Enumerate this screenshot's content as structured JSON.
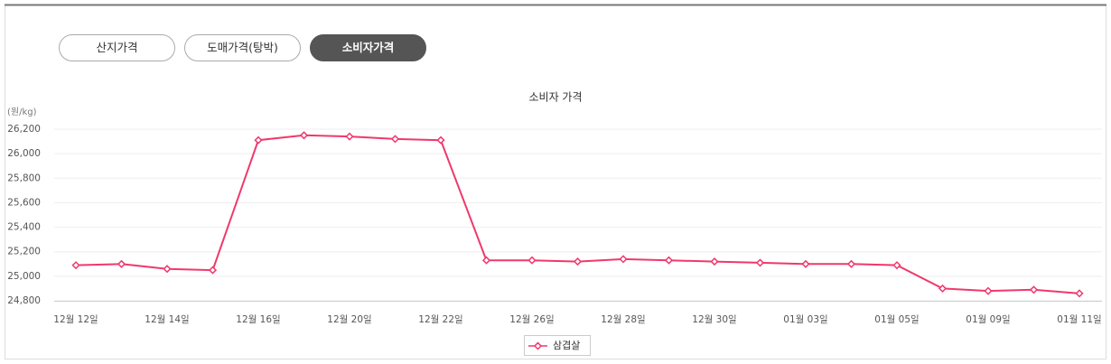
{
  "tabs": [
    "산지가격",
    "도매가격(탕박)",
    "소비자가격"
  ],
  "active_tab": 2,
  "chart_data": {
    "type": "line",
    "title": "소비자 가격",
    "y_label": "(원/kg)",
    "categories": [
      "12월 12일",
      null,
      "12월 14일",
      null,
      "12월 16일",
      null,
      "12월 20일",
      null,
      "12월 22일",
      null,
      "12월 26일",
      null,
      "12월 28일",
      null,
      "12월 30일",
      null,
      "01월 03일",
      null,
      "01월 05일",
      null,
      "01월 09일",
      null,
      "01월 11일"
    ],
    "series": [
      {
        "name": "삼겹살",
        "color": "#f0386b",
        "values": [
          25090,
          25100,
          25060,
          25050,
          26110,
          26150,
          26140,
          26120,
          26110,
          25130,
          25130,
          25120,
          25140,
          25130,
          25120,
          25110,
          25100,
          25100,
          25090,
          24900,
          24880,
          24890,
          24860
        ]
      }
    ],
    "ylim": [
      24800,
      26200
    ],
    "yticks": [
      {
        "value": 24800,
        "label": "24,800"
      },
      {
        "value": 25000,
        "label": "25,000"
      },
      {
        "value": 25200,
        "label": "25,200"
      },
      {
        "value": 25400,
        "label": "25,400"
      },
      {
        "value": 25600,
        "label": "25,600"
      },
      {
        "value": 25800,
        "label": "25,800"
      },
      {
        "value": 26000,
        "label": "26,000"
      },
      {
        "value": 26200,
        "label": "26,200"
      }
    ],
    "grid": true
  }
}
